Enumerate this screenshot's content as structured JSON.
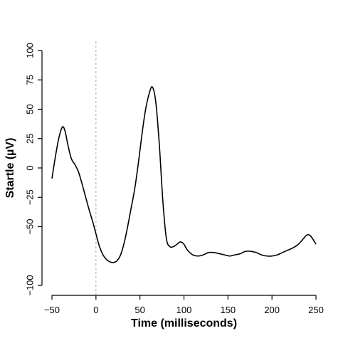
{
  "chart_data": {
    "type": "line",
    "title": "",
    "xlabel": "Time (milliseconds)",
    "ylabel": "Startle (µV)",
    "xlim": [
      -50,
      250
    ],
    "ylim": [
      -100,
      100
    ],
    "x_ticks": [
      -50,
      0,
      50,
      100,
      150,
      200,
      250
    ],
    "x_tick_labels": [
      "−50",
      "0",
      "50",
      "100",
      "150",
      "200",
      "250"
    ],
    "y_ticks": [
      -100,
      -50,
      -25,
      0,
      25,
      50,
      75,
      100
    ],
    "y_tick_labels": [
      "−100",
      "−50",
      "−25",
      "0",
      "25",
      "50",
      "75",
      "100"
    ],
    "reference_line": {
      "x": 0,
      "style": "dashed",
      "color": "#aaaaaa"
    },
    "grid": false,
    "legend": "none",
    "line_color": "#000000",
    "series": [
      {
        "x": [
          -50,
          -46,
          -42,
          -38,
          -35,
          -32,
          -28,
          -24,
          -20,
          -16,
          -12,
          -8,
          -4,
          0,
          4,
          8,
          12,
          16,
          20,
          24,
          28,
          32,
          36,
          40,
          44,
          48,
          52,
          56,
          60,
          64,
          68,
          72,
          76,
          80,
          84,
          88,
          92,
          96,
          100,
          104,
          110,
          116,
          122,
          128,
          134,
          140,
          146,
          152,
          158,
          164,
          170,
          176,
          182,
          188,
          194,
          200,
          206,
          212,
          218,
          224,
          230,
          236,
          240,
          244,
          250
        ],
        "y": [
          -9,
          10,
          26,
          35,
          31,
          20,
          8,
          3,
          -3,
          -13,
          -24,
          -35,
          -45,
          -56,
          -67,
          -74,
          -78,
          -80,
          -80.5,
          -79,
          -74,
          -64,
          -50,
          -34,
          -18,
          3,
          27,
          48,
          62,
          69,
          56,
          20,
          -28,
          -60,
          -67,
          -67,
          -65,
          -63,
          -65,
          -70,
          -74,
          -75,
          -74,
          -72,
          -72,
          -73,
          -74,
          -75,
          -74,
          -73,
          -71,
          -71,
          -72,
          -74,
          -75,
          -75,
          -74,
          -72,
          -70,
          -68,
          -65,
          -60,
          -57,
          -58,
          -65
        ]
      }
    ]
  }
}
